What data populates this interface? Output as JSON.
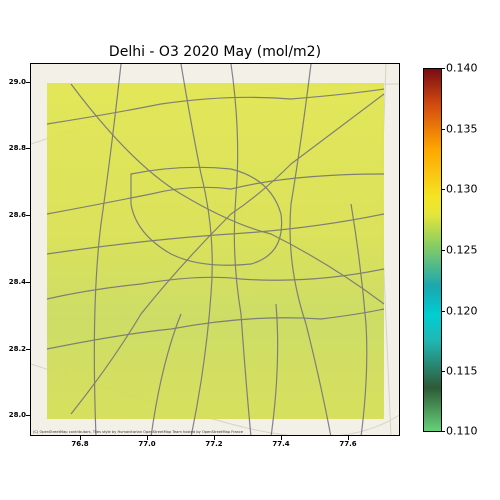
{
  "title": "Delhi - O3 2020 May (mol/m2)",
  "y_ticks": [
    "29.0",
    "28.8",
    "28.6",
    "28.4",
    "28.2",
    "28.0"
  ],
  "x_ticks": [
    "76.8",
    "77.0",
    "77.2",
    "77.4",
    "77.6"
  ],
  "colorbar": {
    "ticks": [
      "0.140",
      "0.135",
      "0.130",
      "0.125",
      "0.120",
      "0.115",
      "0.110"
    ],
    "min": 0.11,
    "max": 0.14
  },
  "attribution": "(C) OpenStreetMap contributors, Tiles style by Humanitarian OpenStreetMap Team hosted by OpenStreetMap France",
  "colors": {
    "overlay": "#d4e05a",
    "roads": "#6f6f7a"
  }
}
